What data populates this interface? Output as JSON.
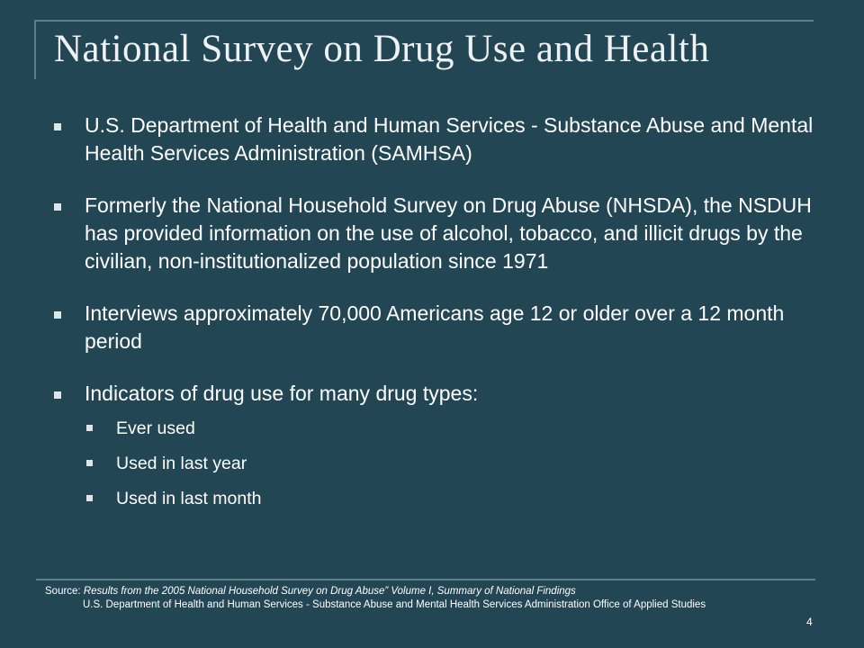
{
  "slide": {
    "title": "National Survey on Drug Use and Health",
    "bullets": [
      "U.S. Department of Health and Human Services - Substance Abuse and Mental Health Services Administration (SAMHSA)",
      "Formerly the National Household Survey on Drug Abuse (NHSDA), the  NSDUH  has provided information on the use of alcohol, tobacco, and illicit drugs by the civilian, non-institutionalized population since 1971",
      "Interviews approximately 70,000 Americans age 12 or older over a 12 month period",
      "Indicators of drug use for many drug types:"
    ],
    "sub_bullets": [
      "Ever used",
      "Used in last year",
      "Used in last month"
    ],
    "source": {
      "label": "Source:",
      "title": "Results from the 2005 National Household Survey on Drug Abuse”  Volume I, Summary of National Findings",
      "credit": "U.S. Department of Health and Human Services -  Substance Abuse and Mental Health Services Administration Office of Applied Studies"
    },
    "page_number": "4"
  }
}
